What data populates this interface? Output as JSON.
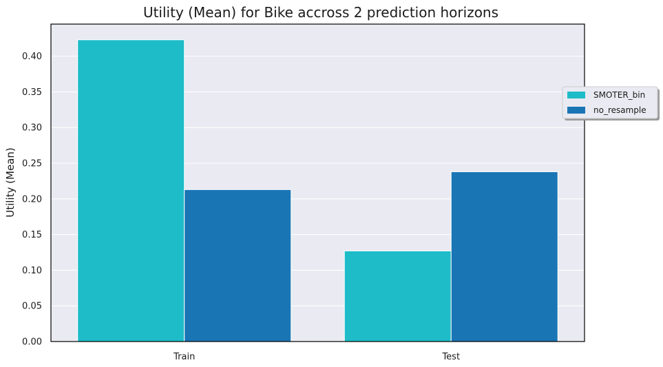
{
  "chart_data": {
    "type": "bar",
    "title": "Utility (Mean) for Bike accross 2 prediction horizons",
    "xlabel": "",
    "ylabel": "Utility (Mean)",
    "categories": [
      "Train",
      "Test"
    ],
    "series": [
      {
        "name": "SMOTER_bin",
        "color": "#1dbcc8",
        "values": [
          0.423,
          0.127
        ]
      },
      {
        "name": "no_resample",
        "color": "#1a75b5",
        "values": [
          0.213,
          0.238
        ]
      }
    ],
    "ylim": [
      0,
      0.445
    ],
    "yticks": [
      0.0,
      0.05,
      0.1,
      0.15,
      0.2,
      0.25,
      0.3,
      0.35,
      0.4
    ],
    "ytick_labels": [
      "0.00",
      "0.05",
      "0.10",
      "0.15",
      "0.20",
      "0.25",
      "0.30",
      "0.35",
      "0.40"
    ],
    "grid": true,
    "legend_position": "right",
    "background_color": "#eaeaf2",
    "grid_color": "#ffffff"
  }
}
